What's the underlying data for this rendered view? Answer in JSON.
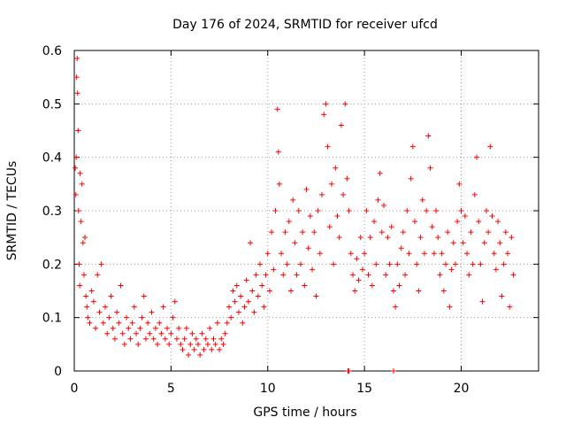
{
  "chart_data": {
    "type": "scatter",
    "title": "Day 176 of 2024, SRMTID for receiver ufcd",
    "xlabel": "GPS time / hours",
    "ylabel": "SRMTID / TECUs",
    "xlim": [
      0,
      24
    ],
    "ylim": [
      0,
      0.6
    ],
    "x_ticks": [
      0,
      5,
      10,
      15,
      20
    ],
    "y_ticks": [
      0,
      0.1,
      0.2,
      0.3,
      0.4,
      0.5,
      0.6
    ],
    "x_tick_labels": [
      "0",
      "5",
      "10",
      "15",
      "20"
    ],
    "y_tick_labels": [
      "0",
      "0.1",
      "0.2",
      "0.3",
      "0.4",
      "0.5",
      "0.6"
    ],
    "grid": true,
    "marker": "+",
    "color": "#ff0000",
    "series": [
      {
        "name": "SRMTID",
        "points": [
          [
            0.05,
            0.38
          ],
          [
            0.08,
            0.33
          ],
          [
            0.1,
            0.4
          ],
          [
            0.12,
            0.55
          ],
          [
            0.15,
            0.585
          ],
          [
            0.17,
            0.52
          ],
          [
            0.2,
            0.45
          ],
          [
            0.22,
            0.3
          ],
          [
            0.25,
            0.2
          ],
          [
            0.28,
            0.16
          ],
          [
            0.3,
            0.37
          ],
          [
            0.35,
            0.28
          ],
          [
            0.4,
            0.35
          ],
          [
            0.45,
            0.24
          ],
          [
            0.5,
            0.18
          ],
          [
            0.55,
            0.25
          ],
          [
            0.6,
            0.14
          ],
          [
            0.65,
            0.12
          ],
          [
            0.7,
            0.1
          ],
          [
            0.8,
            0.09
          ],
          [
            0.9,
            0.15
          ],
          [
            1.0,
            0.13
          ],
          [
            1.1,
            0.08
          ],
          [
            1.2,
            0.18
          ],
          [
            1.3,
            0.11
          ],
          [
            1.4,
            0.2
          ],
          [
            1.5,
            0.09
          ],
          [
            1.6,
            0.12
          ],
          [
            1.7,
            0.07
          ],
          [
            1.8,
            0.1
          ],
          [
            1.9,
            0.14
          ],
          [
            2.0,
            0.08
          ],
          [
            2.1,
            0.06
          ],
          [
            2.2,
            0.11
          ],
          [
            2.3,
            0.09
          ],
          [
            2.4,
            0.16
          ],
          [
            2.5,
            0.07
          ],
          [
            2.6,
            0.05
          ],
          [
            2.7,
            0.1
          ],
          [
            2.8,
            0.08
          ],
          [
            2.9,
            0.06
          ],
          [
            3.0,
            0.09
          ],
          [
            3.1,
            0.12
          ],
          [
            3.2,
            0.07
          ],
          [
            3.3,
            0.05
          ],
          [
            3.4,
            0.08
          ],
          [
            3.5,
            0.1
          ],
          [
            3.6,
            0.14
          ],
          [
            3.7,
            0.06
          ],
          [
            3.8,
            0.09
          ],
          [
            3.9,
            0.07
          ],
          [
            4.0,
            0.11
          ],
          [
            4.1,
            0.06
          ],
          [
            4.2,
            0.08
          ],
          [
            4.3,
            0.05
          ],
          [
            4.4,
            0.09
          ],
          [
            4.5,
            0.07
          ],
          [
            4.6,
            0.12
          ],
          [
            4.7,
            0.06
          ],
          [
            4.8,
            0.08
          ],
          [
            4.9,
            0.05
          ],
          [
            5.0,
            0.07
          ],
          [
            5.1,
            0.1
          ],
          [
            5.2,
            0.13
          ],
          [
            5.3,
            0.06
          ],
          [
            5.4,
            0.08
          ],
          [
            5.5,
            0.05
          ],
          [
            5.6,
            0.04
          ],
          [
            5.7,
            0.06
          ],
          [
            5.8,
            0.08
          ],
          [
            5.9,
            0.03
          ],
          [
            6.0,
            0.05
          ],
          [
            6.1,
            0.07
          ],
          [
            6.2,
            0.04
          ],
          [
            6.3,
            0.06
          ],
          [
            6.4,
            0.05
          ],
          [
            6.5,
            0.03
          ],
          [
            6.6,
            0.07
          ],
          [
            6.7,
            0.04
          ],
          [
            6.8,
            0.06
          ],
          [
            6.9,
            0.05
          ],
          [
            7.0,
            0.08
          ],
          [
            7.1,
            0.04
          ],
          [
            7.2,
            0.06
          ],
          [
            7.3,
            0.05
          ],
          [
            7.4,
            0.09
          ],
          [
            7.5,
            0.04
          ],
          [
            7.6,
            0.06
          ],
          [
            7.7,
            0.05
          ],
          [
            7.8,
            0.07
          ],
          [
            7.9,
            0.09
          ],
          [
            8.0,
            0.12
          ],
          [
            8.1,
            0.1
          ],
          [
            8.2,
            0.15
          ],
          [
            8.3,
            0.13
          ],
          [
            8.4,
            0.16
          ],
          [
            8.5,
            0.11
          ],
          [
            8.6,
            0.14
          ],
          [
            8.7,
            0.09
          ],
          [
            8.8,
            0.12
          ],
          [
            8.9,
            0.17
          ],
          [
            9.0,
            0.13
          ],
          [
            9.1,
            0.24
          ],
          [
            9.2,
            0.15
          ],
          [
            9.3,
            0.11
          ],
          [
            9.4,
            0.18
          ],
          [
            9.5,
            0.14
          ],
          [
            9.6,
            0.2
          ],
          [
            9.7,
            0.16
          ],
          [
            9.8,
            0.12
          ],
          [
            9.9,
            0.18
          ],
          [
            10.0,
            0.22
          ],
          [
            10.1,
            0.15
          ],
          [
            10.2,
            0.26
          ],
          [
            10.3,
            0.19
          ],
          [
            10.4,
            0.3
          ],
          [
            10.5,
            0.49
          ],
          [
            10.55,
            0.41
          ],
          [
            10.6,
            0.35
          ],
          [
            10.7,
            0.22
          ],
          [
            10.8,
            0.18
          ],
          [
            10.9,
            0.26
          ],
          [
            11.0,
            0.2
          ],
          [
            11.1,
            0.28
          ],
          [
            11.2,
            0.15
          ],
          [
            11.3,
            0.32
          ],
          [
            11.4,
            0.24
          ],
          [
            11.5,
            0.18
          ],
          [
            11.6,
            0.3
          ],
          [
            11.7,
            0.2
          ],
          [
            11.8,
            0.26
          ],
          [
            11.9,
            0.16
          ],
          [
            12.0,
            0.34
          ],
          [
            12.1,
            0.23
          ],
          [
            12.2,
            0.29
          ],
          [
            12.3,
            0.19
          ],
          [
            12.4,
            0.26
          ],
          [
            12.5,
            0.14
          ],
          [
            12.6,
            0.3
          ],
          [
            12.7,
            0.22
          ],
          [
            12.8,
            0.33
          ],
          [
            12.9,
            0.48
          ],
          [
            13.0,
            0.5
          ],
          [
            13.1,
            0.42
          ],
          [
            13.2,
            0.27
          ],
          [
            13.3,
            0.35
          ],
          [
            13.4,
            0.2
          ],
          [
            13.5,
            0.38
          ],
          [
            13.6,
            0.29
          ],
          [
            13.7,
            0.25
          ],
          [
            13.8,
            0.46
          ],
          [
            13.9,
            0.33
          ],
          [
            14.0,
            0.5
          ],
          [
            14.1,
            0.36
          ],
          [
            14.2,
            0.3
          ],
          [
            14.3,
            0.22
          ],
          [
            14.4,
            0.18
          ],
          [
            14.5,
            0.15
          ],
          [
            14.6,
            0.21
          ],
          [
            14.7,
            0.17
          ],
          [
            14.8,
            0.25
          ],
          [
            14.9,
            0.19
          ],
          [
            15.0,
            0.22
          ],
          [
            15.1,
            0.3
          ],
          [
            15.2,
            0.18
          ],
          [
            15.3,
            0.25
          ],
          [
            15.4,
            0.16
          ],
          [
            15.5,
            0.28
          ],
          [
            15.6,
            0.2
          ],
          [
            15.7,
            0.32
          ],
          [
            15.8,
            0.37
          ],
          [
            15.9,
            0.26
          ],
          [
            16.0,
            0.31
          ],
          [
            16.1,
            0.18
          ],
          [
            16.2,
            0.25
          ],
          [
            16.3,
            0.2
          ],
          [
            16.4,
            0.27
          ],
          [
            16.5,
            0.15
          ],
          [
            16.6,
            0.12
          ],
          [
            16.7,
            0.2
          ],
          [
            16.8,
            0.16
          ],
          [
            16.9,
            0.23
          ],
          [
            17.0,
            0.26
          ],
          [
            17.1,
            0.18
          ],
          [
            17.2,
            0.3
          ],
          [
            17.3,
            0.22
          ],
          [
            17.4,
            0.36
          ],
          [
            17.5,
            0.42
          ],
          [
            17.6,
            0.28
          ],
          [
            17.7,
            0.2
          ],
          [
            17.8,
            0.15
          ],
          [
            17.9,
            0.25
          ],
          [
            18.0,
            0.32
          ],
          [
            18.1,
            0.22
          ],
          [
            18.2,
            0.3
          ],
          [
            18.3,
            0.44
          ],
          [
            18.4,
            0.38
          ],
          [
            18.5,
            0.27
          ],
          [
            18.6,
            0.22
          ],
          [
            18.7,
            0.3
          ],
          [
            18.8,
            0.25
          ],
          [
            18.9,
            0.18
          ],
          [
            19.0,
            0.22
          ],
          [
            19.1,
            0.15
          ],
          [
            19.2,
            0.2
          ],
          [
            19.3,
            0.26
          ],
          [
            19.4,
            0.12
          ],
          [
            19.5,
            0.19
          ],
          [
            19.6,
            0.24
          ],
          [
            19.7,
            0.2
          ],
          [
            19.8,
            0.28
          ],
          [
            19.9,
            0.35
          ],
          [
            20.0,
            0.3
          ],
          [
            20.1,
            0.24
          ],
          [
            20.2,
            0.29
          ],
          [
            20.3,
            0.22
          ],
          [
            20.4,
            0.18
          ],
          [
            20.5,
            0.26
          ],
          [
            20.6,
            0.2
          ],
          [
            20.7,
            0.33
          ],
          [
            20.8,
            0.4
          ],
          [
            20.9,
            0.28
          ],
          [
            21.0,
            0.2
          ],
          [
            21.1,
            0.13
          ],
          [
            21.2,
            0.24
          ],
          [
            21.3,
            0.3
          ],
          [
            21.4,
            0.26
          ],
          [
            21.5,
            0.42
          ],
          [
            21.6,
            0.29
          ],
          [
            21.7,
            0.22
          ],
          [
            21.8,
            0.19
          ],
          [
            21.9,
            0.28
          ],
          [
            22.0,
            0.24
          ],
          [
            22.1,
            0.14
          ],
          [
            22.2,
            0.2
          ],
          [
            22.3,
            0.26
          ],
          [
            22.4,
            0.22
          ],
          [
            22.5,
            0.12
          ],
          [
            22.6,
            0.25
          ],
          [
            22.7,
            0.18
          ],
          [
            14.15,
            0.0
          ],
          [
            14.2,
            0.0
          ],
          [
            16.5,
            0.0
          ]
        ]
      }
    ]
  }
}
